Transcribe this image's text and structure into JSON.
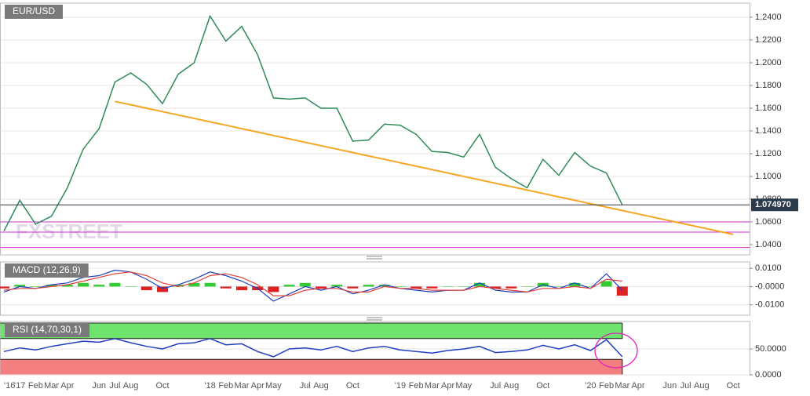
{
  "chart_data": [
    {
      "type": "line",
      "title": "EUR/USD",
      "watermark": "FXSTREET",
      "values": [
        1.052,
        1.079,
        1.058,
        1.065,
        1.09,
        1.124,
        1.142,
        1.183,
        1.191,
        1.181,
        1.164,
        1.19,
        1.2,
        1.241,
        1.219,
        1.232,
        1.207,
        1.169,
        1.168,
        1.169,
        1.16,
        1.16,
        1.131,
        1.132,
        1.146,
        1.145,
        1.137,
        1.122,
        1.121,
        1.117,
        1.137,
        1.108,
        1.098,
        1.09,
        1.115,
        1.101,
        1.121,
        1.109,
        1.103,
        1.075,
        null,
        null,
        null,
        null,
        null,
        null,
        null
      ],
      "color": "#2e8b57",
      "trendline": {
        "color": "#f5a623",
        "values": [
          null,
          null,
          null,
          null,
          null,
          null,
          null,
          1.166,
          1.163,
          1.16,
          1.157,
          1.154,
          1.151,
          1.148,
          1.145,
          1.142,
          1.139,
          1.136,
          1.133,
          1.13,
          1.127,
          1.124,
          1.121,
          1.118,
          1.115,
          1.112,
          1.109,
          1.106,
          1.103,
          1.1,
          1.097,
          1.094,
          1.091,
          1.088,
          1.085,
          1.082,
          1.079,
          1.076,
          1.073,
          1.07,
          1.067,
          1.064,
          1.061,
          1.058,
          1.055,
          1.052,
          1.049
        ]
      },
      "hlines": {
        "color": "#cc33cc",
        "values": [
          1.06,
          1.051,
          1.0375
        ]
      },
      "last_value": 1.07497,
      "last_value_label": "1.074970",
      "ylim": [
        1.031,
        1.2524
      ],
      "yticks": [
        {
          "value": 1.04,
          "label": "1.0400"
        },
        {
          "value": 1.06,
          "label": "1.0600"
        },
        {
          "value": 1.08,
          "label": "1.0800"
        },
        {
          "value": 1.1,
          "label": "1.1000"
        },
        {
          "value": 1.12,
          "label": "1.1200"
        },
        {
          "value": 1.14,
          "label": "1.1400"
        },
        {
          "value": 1.16,
          "label": "1.1600"
        },
        {
          "value": 1.18,
          "label": "1.1800"
        },
        {
          "value": 1.2,
          "label": "1.2000"
        },
        {
          "value": 1.22,
          "label": "1.2200"
        },
        {
          "value": 1.24,
          "label": "1.2400"
        }
      ],
      "grid": true
    },
    {
      "type": "line",
      "title": "MACD (12,26,9)",
      "series": [
        {
          "color": "#1f3fbf",
          "values": [
            -0.003,
            0.0,
            -0.001,
            0.001,
            0.002,
            0.005,
            0.006,
            0.009,
            0.008,
            0.004,
            -0.001,
            0.001,
            0.004,
            0.008,
            0.006,
            0.003,
            -0.001,
            -0.008,
            -0.004,
            0.0,
            -0.002,
            0.0,
            -0.004,
            -0.002,
            0.001,
            -0.001,
            -0.002,
            -0.003,
            -0.002,
            -0.002,
            0.002,
            -0.002,
            -0.003,
            -0.003,
            0.001,
            -0.001,
            0.002,
            -0.001,
            0.007,
            -0.002,
            null,
            null,
            null,
            null,
            null,
            null,
            null
          ]
        },
        {
          "color": "#e0403a",
          "values": [
            -0.002,
            -0.001,
            -0.001,
            0.0,
            0.001,
            0.003,
            0.005,
            0.007,
            0.008,
            0.006,
            0.002,
            0.0,
            0.002,
            0.006,
            0.007,
            0.005,
            0.001,
            -0.005,
            -0.005,
            -0.002,
            -0.001,
            -0.001,
            -0.003,
            -0.003,
            0.0,
            -0.001,
            -0.001,
            -0.002,
            -0.002,
            -0.002,
            0.0,
            -0.001,
            -0.002,
            -0.003,
            -0.001,
            -0.001,
            0.0,
            -0.001,
            0.004,
            0.003,
            null,
            null,
            null,
            null,
            null,
            null,
            null
          ]
        }
      ],
      "histogram": {
        "colors": [
          "#33cc33",
          "#dd2222"
        ],
        "values": [
          -0.001,
          0.001,
          0.0,
          0.001,
          0.001,
          0.002,
          0.001,
          0.002,
          0.0,
          -0.002,
          -0.003,
          0.001,
          0.002,
          0.002,
          -0.001,
          -0.002,
          -0.002,
          -0.003,
          0.001,
          0.002,
          -0.001,
          0.001,
          -0.001,
          0.001,
          0.001,
          0.0,
          -0.001,
          -0.001,
          0.0,
          0.0,
          0.002,
          -0.001,
          -0.001,
          0.0,
          0.002,
          0.0,
          0.002,
          0.0,
          0.003,
          -0.005,
          null,
          null,
          null,
          null,
          null,
          null,
          null
        ]
      },
      "ylim": [
        -0.0157,
        0.0135
      ],
      "yticks": [
        {
          "value": 0.01,
          "label": "0.0100"
        },
        {
          "value": 0,
          "label": "-0.0000"
        },
        {
          "value": -0.01,
          "label": "-0.0100"
        }
      ],
      "grid": true
    },
    {
      "type": "line",
      "title": "RSI (14,70,30,1)",
      "categories": [
        "'16",
        "'17",
        "Feb",
        "Mar",
        "Apr",
        null,
        "Jun",
        "Jul",
        "Aug",
        null,
        "Oct",
        null,
        null,
        "'18",
        "Feb",
        "Mar",
        "Apr",
        "May",
        null,
        "Jul",
        "Aug",
        null,
        "Oct",
        null,
        null,
        "'19",
        "Feb",
        "Mar",
        "Apr",
        "May",
        null,
        "Jul",
        "Aug",
        null,
        "Oct",
        null,
        null,
        "'20",
        "Feb",
        "Mar",
        "Apr",
        null,
        "Jun",
        "Jul",
        "Aug",
        null,
        "Oct"
      ],
      "values": [
        45,
        52,
        48,
        55,
        60,
        65,
        63,
        70,
        62,
        55,
        50,
        60,
        62,
        70,
        58,
        60,
        45,
        35,
        50,
        52,
        48,
        55,
        45,
        52,
        55,
        48,
        45,
        42,
        47,
        50,
        55,
        43,
        45,
        48,
        57,
        50,
        58,
        47,
        68,
        35,
        null,
        null,
        null,
        null,
        null,
        null,
        null
      ],
      "color": "#1f3fbf",
      "bands": [
        {
          "from": 70,
          "to": 100,
          "color": "#6ee36e"
        },
        {
          "from": 0,
          "to": 30,
          "color": "#f47f7f"
        }
      ],
      "ylim": [
        0,
        103
      ],
      "yticks": [
        {
          "value": 50,
          "label": "50.0000"
        },
        {
          "value": 0,
          "label": "0.0000"
        }
      ],
      "grid": true
    }
  ]
}
